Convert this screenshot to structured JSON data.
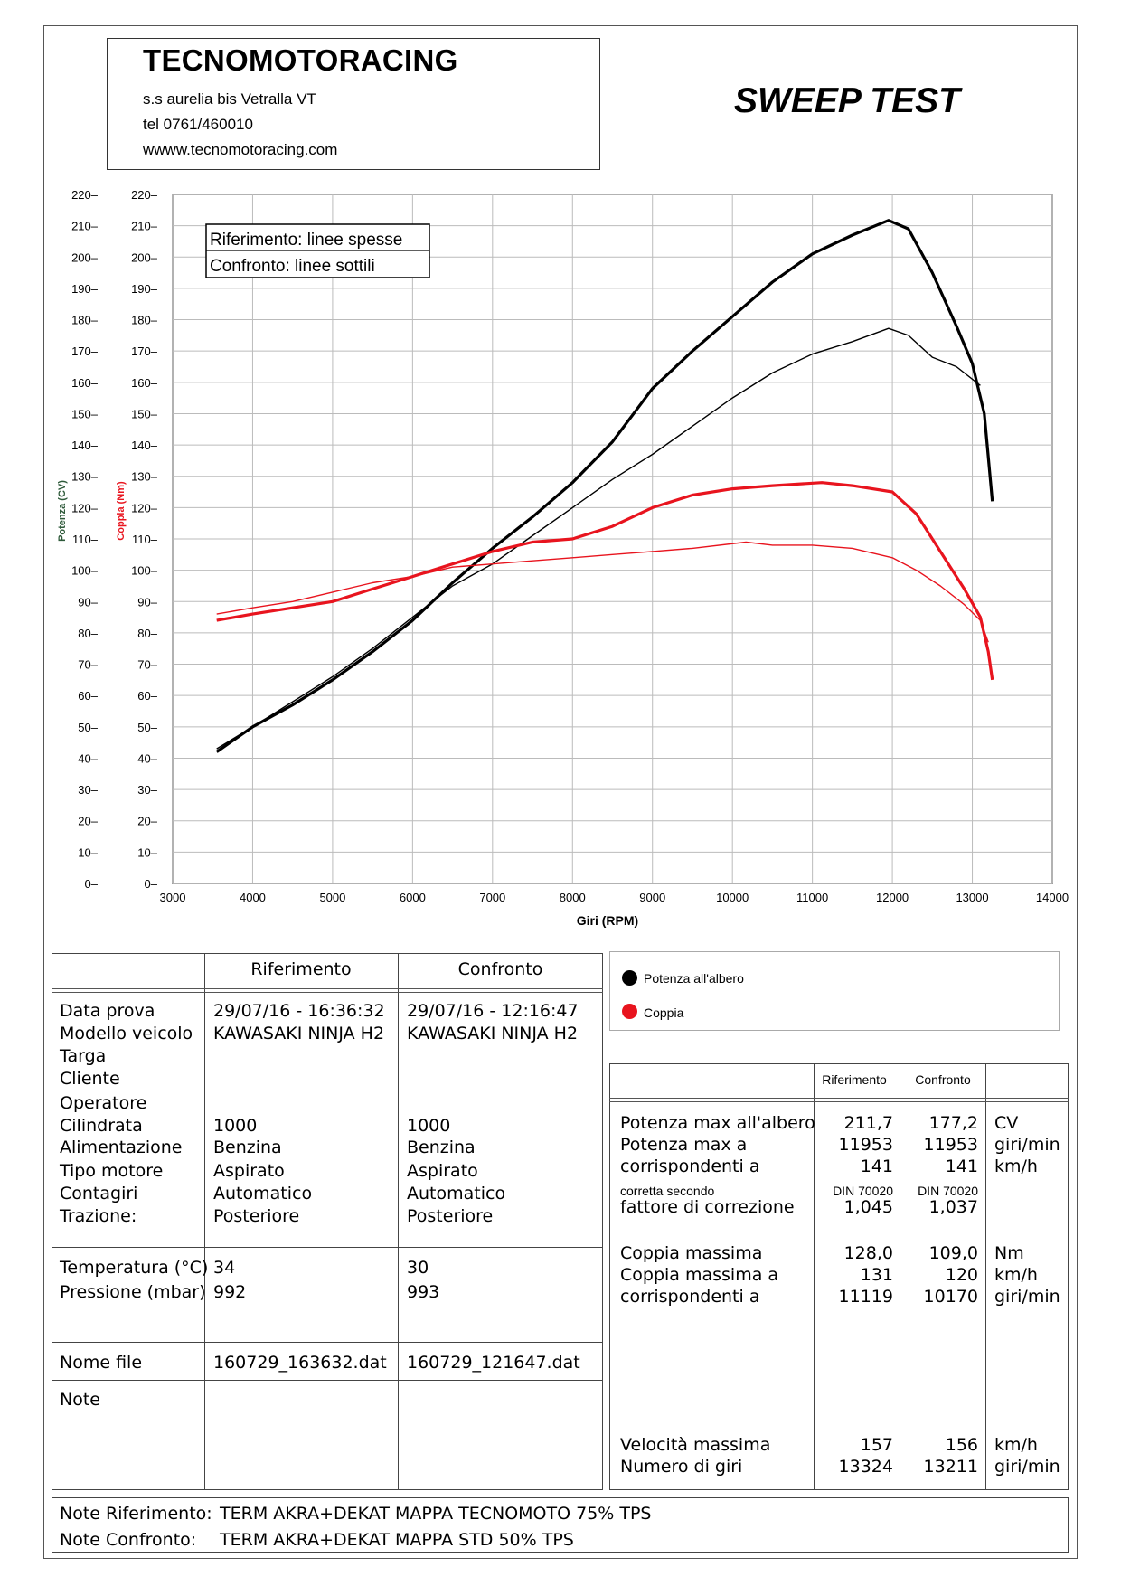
{
  "header": {
    "company": "TECNOMOTORACING",
    "address": "s.s aurelia bis  Vetralla  VT",
    "phone": "tel 0761/460010",
    "website": "wwww.tecnomotoracing.com",
    "test_title": "SWEEP TEST"
  },
  "chart_data": {
    "type": "line",
    "xlabel": "Giri (RPM)",
    "ylabel_power": "Potenza (CV)",
    "ylabel_torque": "Coppia (Nm)",
    "xlim": [
      3000,
      14000
    ],
    "ylim": [
      0,
      220
    ],
    "x_ticks": [
      3000,
      4000,
      5000,
      6000,
      7000,
      8000,
      9000,
      10000,
      11000,
      12000,
      13000,
      14000
    ],
    "y_ticks": [
      0,
      10,
      20,
      30,
      40,
      50,
      60,
      70,
      80,
      90,
      100,
      110,
      120,
      130,
      140,
      150,
      160,
      170,
      180,
      190,
      200,
      210,
      220
    ],
    "grid": true,
    "legend_text": [
      "Riferimento: linee spesse",
      "Confronto: linee sottili"
    ],
    "series": [
      {
        "name": "Potenza all'albero",
        "group": "Riferimento",
        "color": "#000000",
        "x": [
          3550,
          4000,
          4500,
          5000,
          5500,
          6000,
          6500,
          7000,
          7500,
          8000,
          8500,
          9000,
          9500,
          10000,
          10500,
          11000,
          11500,
          11953,
          12200,
          12500,
          12800,
          13000,
          13150,
          13250
        ],
        "y": [
          42,
          50,
          57,
          65,
          74,
          84,
          96,
          107,
          117,
          128,
          141,
          158,
          170,
          181,
          192,
          201,
          207,
          211.7,
          209,
          195,
          178,
          166,
          150,
          122
        ]
      },
      {
        "name": "Potenza all'albero",
        "group": "Confronto",
        "color": "#000000",
        "x": [
          3550,
          4000,
          4500,
          5000,
          5500,
          6000,
          6500,
          7000,
          7500,
          8000,
          8500,
          9000,
          9500,
          10000,
          10500,
          11000,
          11500,
          11953,
          12200,
          12500,
          12800,
          13100
        ],
        "y": [
          43,
          50,
          58,
          66,
          75,
          85,
          95,
          102,
          111,
          120,
          129,
          137,
          146,
          155,
          163,
          169,
          173,
          177.2,
          175,
          168,
          165,
          159
        ]
      },
      {
        "name": "Coppia",
        "group": "Riferimento",
        "color": "#e8141e",
        "x": [
          3550,
          4000,
          4500,
          5000,
          5500,
          6000,
          6500,
          7000,
          7500,
          8000,
          8500,
          9000,
          9500,
          10000,
          10500,
          11119,
          11500,
          12000,
          12300,
          12600,
          12900,
          13100,
          13200,
          13250
        ],
        "y": [
          84,
          86,
          88,
          90,
          94,
          98,
          102,
          106,
          109,
          110,
          114,
          120,
          124,
          126,
          127,
          128,
          127,
          125,
          118,
          106,
          94,
          85,
          74,
          65
        ]
      },
      {
        "name": "Coppia",
        "group": "Confronto",
        "color": "#e8141e",
        "x": [
          3550,
          4000,
          4500,
          5000,
          5500,
          6000,
          6500,
          7000,
          7500,
          8000,
          8500,
          9000,
          9500,
          10170,
          10500,
          11000,
          11500,
          12000,
          12300,
          12600,
          12900,
          13100,
          13200
        ],
        "y": [
          86,
          88,
          90,
          93,
          96,
          98,
          101,
          102,
          103,
          104,
          105,
          106,
          107,
          109,
          108,
          108,
          107,
          104,
          100,
          95,
          89,
          84,
          77
        ]
      }
    ]
  },
  "info_table": {
    "col_headers": [
      "Riferimento",
      "Confronto"
    ],
    "labels1": [
      "Data prova",
      "Modello veicolo",
      "Targa",
      "Cliente",
      "Operatore",
      "Cilindrata",
      "Alimentazione",
      "Tipo motore",
      "Contagiri",
      "Trazione:"
    ],
    "ref1": [
      "29/07/16 - 16:36:32",
      "KAWASAKI NINJA H2",
      "",
      "",
      "",
      "1000",
      "Benzina",
      "Aspirato",
      "Automatico",
      "Posteriore"
    ],
    "cmp1": [
      "29/07/16 - 12:16:47",
      "KAWASAKI NINJA H2",
      "",
      "",
      "",
      "1000",
      "Benzina",
      "Aspirato",
      "Automatico",
      "Posteriore"
    ],
    "labels2": [
      "Temperatura (°C)",
      "Pressione (mbar)"
    ],
    "ref2": [
      "34",
      "992"
    ],
    "cmp2": [
      "30",
      "993"
    ],
    "file_label": "Nome file",
    "ref_file": "160729_163632.dat",
    "cmp_file": "160729_121647.dat",
    "note_label": "Note"
  },
  "legend": {
    "power": "Potenza all'albero",
    "torque": "Coppia",
    "power_color": "#000000",
    "torque_color": "#e8141e"
  },
  "results_table": {
    "col_headers": [
      "Riferimento",
      "Confronto"
    ],
    "power_max_label": "Potenza max all'albero",
    "power_at_label": "Potenza max a",
    "corresponding_label": "corrispondenti a",
    "corrected_label": "corretta secondo",
    "factor_label": "fattore di correzione",
    "power_max": [
      "211,7",
      "177,2"
    ],
    "power_rpm": [
      "11953",
      "11953"
    ],
    "power_speed": [
      "141",
      "141"
    ],
    "standard": [
      "DIN 70020",
      "DIN 70020"
    ],
    "factor": [
      "1,045",
      "1,037"
    ],
    "units1": [
      "CV",
      "giri/min",
      "km/h"
    ],
    "torque_max_label": "Coppia massima",
    "torque_at_label": "Coppia massima a",
    "torque_corr_label": "corrispondenti a",
    "torque_max": [
      "128,0",
      "109,0"
    ],
    "torque_speed": [
      "131",
      "120"
    ],
    "torque_rpm": [
      "11119",
      "10170"
    ],
    "units2": [
      "Nm",
      "km/h",
      "giri/min"
    ],
    "vmax_label": "Velocità massima",
    "rpm_label": "Numero di giri",
    "vmax": [
      "157",
      "156"
    ],
    "vmax_rpm": [
      "13324",
      "13211"
    ],
    "units3": [
      "km/h",
      "giri/min"
    ]
  },
  "notes": {
    "ref_label": "Note Riferimento:",
    "ref_text": "TERM AKRA+DEKAT MAPPA TECNOMOTO 75% TPS",
    "cmp_label": "Note Confronto:",
    "cmp_text": "TERM AKRA+DEKAT MAPPA STD 50% TPS"
  }
}
